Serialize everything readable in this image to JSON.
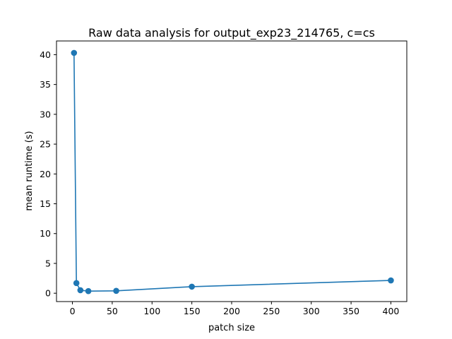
{
  "chart_data": {
    "type": "line",
    "title": "Raw data analysis for output_exp23_214765, c=cs",
    "xlabel": "patch size",
    "ylabel": "mean runtime (s)",
    "xlim": [
      -20,
      420
    ],
    "ylim": [
      -1.4,
      42.3
    ],
    "xticks": [
      0,
      50,
      100,
      150,
      200,
      250,
      300,
      350,
      400
    ],
    "yticks": [
      0,
      5,
      10,
      15,
      20,
      25,
      30,
      35,
      40
    ],
    "grid": false,
    "markers": "circle",
    "color": "#1f77b4",
    "series": [
      {
        "x": [
          2,
          5,
          10,
          20,
          55,
          150,
          400
        ],
        "y": [
          40.3,
          1.7,
          0.5,
          0.35,
          0.4,
          1.1,
          2.15
        ]
      }
    ]
  }
}
